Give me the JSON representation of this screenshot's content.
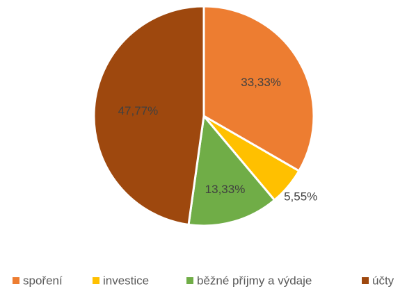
{
  "chart_data": {
    "type": "pie",
    "categories": [
      "spoření",
      "investice",
      "běžné příjmy a výdaje",
      "účty"
    ],
    "values": [
      33.33,
      5.55,
      13.33,
      47.77
    ],
    "value_labels": [
      "33,33%",
      "5,55%",
      "13,33%",
      "47,77%"
    ],
    "colors": [
      "#ED7D31",
      "#FFC000",
      "#70AD47",
      "#9E480E"
    ],
    "legend": "bottom"
  }
}
